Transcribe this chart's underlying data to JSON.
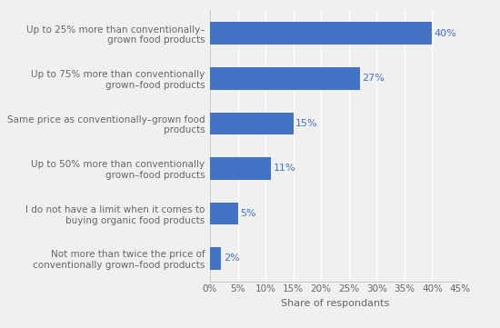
{
  "categories": [
    "Not more than twice the price of\nconventionally grown–food products",
    "I do not have a limit when it comes to\nbuying organic food products",
    "Up to 50% more than conventionally\ngrown–food products",
    "Same price as conventionally–grown food\nproducts",
    "Up to 75% more than conventionally\ngrown–food products",
    "Up to 25% more than conventionally–\ngrown food products"
  ],
  "values": [
    2,
    5,
    11,
    15,
    27,
    40
  ],
  "bar_color": "#4472c4",
  "label_color": "#4472c4",
  "background_color": "#f0f0f0",
  "plot_area_color": "#f0f0f0",
  "xlabel": "Share of respondants",
  "xlim": [
    0,
    45
  ],
  "xticks": [
    0,
    5,
    10,
    15,
    20,
    25,
    30,
    35,
    40,
    45
  ],
  "xtick_labels": [
    "0%",
    "5%",
    "10%",
    "15%",
    "20%",
    "25%",
    "30%",
    "35%",
    "40%",
    "45%"
  ],
  "tick_label_fontsize": 7.5,
  "axis_label_fontsize": 8,
  "bar_label_fontsize": 8,
  "category_fontsize": 7.5,
  "grid_color": "#ffffff",
  "spine_color": "#cccccc",
  "text_color": "#666666"
}
